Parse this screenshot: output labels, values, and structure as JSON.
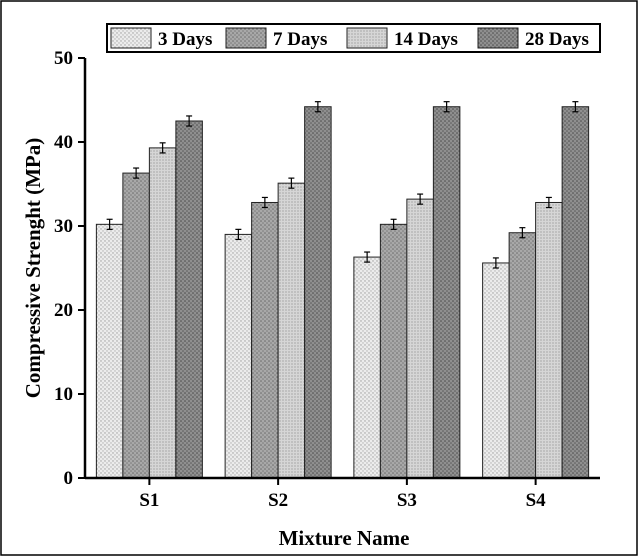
{
  "chart_data": {
    "type": "bar",
    "categories": [
      "S1",
      "S2",
      "S3",
      "S4"
    ],
    "series": [
      {
        "name": "3 Days",
        "values": [
          30.2,
          29.0,
          26.3,
          25.6
        ],
        "errors": [
          0.6,
          0.6,
          0.6,
          0.6
        ],
        "color": "#e3e3e3",
        "pattern": "dots-light"
      },
      {
        "name": "7 Days",
        "values": [
          36.3,
          32.8,
          30.2,
          29.2
        ],
        "errors": [
          0.6,
          0.6,
          0.6,
          0.6
        ],
        "color": "#a3a3a3",
        "pattern": "dots-medium"
      },
      {
        "name": "14 Days",
        "values": [
          39.3,
          35.1,
          33.2,
          32.8
        ],
        "errors": [
          0.6,
          0.6,
          0.6,
          0.6
        ],
        "color": "#cfcfcf",
        "pattern": "dots-fine"
      },
      {
        "name": "28 Days",
        "values": [
          42.5,
          44.2,
          44.2,
          44.2
        ],
        "errors": [
          0.6,
          0.6,
          0.6,
          0.6
        ],
        "color": "#8a8a8a",
        "pattern": "dots-dark"
      }
    ],
    "xlabel": "Mixture Name",
    "ylabel": "Compressive Strenght (MPa)",
    "ylim": [
      0,
      50
    ],
    "yticks": [
      0,
      10,
      20,
      30,
      40,
      50
    ],
    "grid": false,
    "legend_position": "top",
    "error_bars": true
  }
}
